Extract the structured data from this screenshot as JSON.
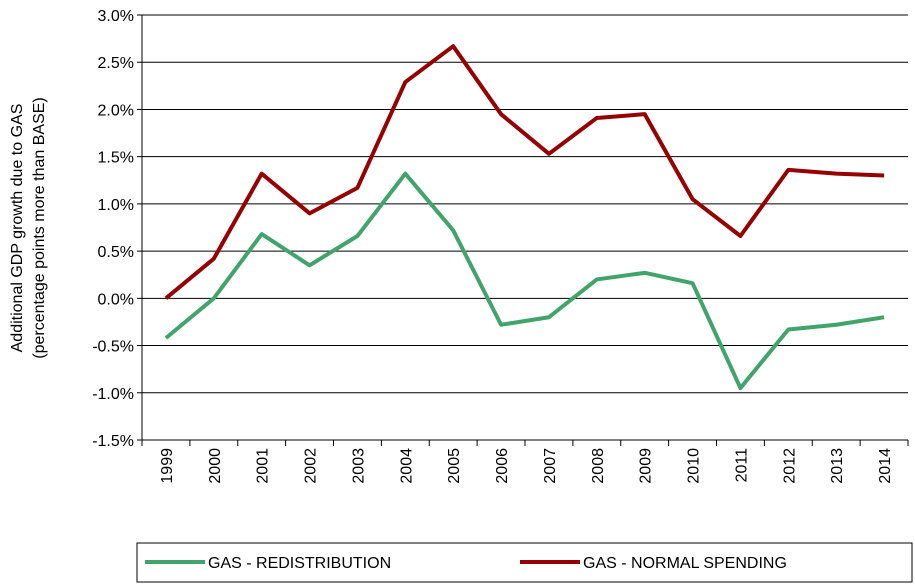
{
  "chart_data": {
    "type": "line",
    "y_label": [
      "Additional GDP growth due to GAS",
      "(percentage points more than BASE)"
    ],
    "categories": [
      "1999",
      "2000",
      "2001",
      "2002",
      "2003",
      "2004",
      "2005",
      "2006",
      "2007",
      "2008",
      "2009",
      "2010",
      "2011",
      "2012",
      "2013",
      "2014"
    ],
    "series": [
      {
        "name": "GAS - REDISTRIBUTION",
        "color": "#41a46a",
        "values": [
          -0.42,
          0.0,
          0.68,
          0.35,
          0.66,
          1.32,
          0.72,
          -0.28,
          -0.2,
          0.2,
          0.27,
          0.16,
          -0.95,
          -0.33,
          -0.28,
          -0.2
        ]
      },
      {
        "name": "GAS - NORMAL SPENDING",
        "color": "#960000",
        "values": [
          0.0,
          0.42,
          1.32,
          0.9,
          1.17,
          2.29,
          2.67,
          1.95,
          1.53,
          1.91,
          1.95,
          1.05,
          0.66,
          1.36,
          1.32,
          1.3
        ]
      }
    ],
    "ylim": [
      -1.5,
      3.0
    ],
    "yticks": [
      {
        "value": -1.5,
        "label": "-1.5%"
      },
      {
        "value": -1.0,
        "label": "-1.0%"
      },
      {
        "value": -0.5,
        "label": "-0.5%"
      },
      {
        "value": 0.0,
        "label": "0.0%"
      },
      {
        "value": 0.5,
        "label": "0.5%"
      },
      {
        "value": 1.0,
        "label": "1.0%"
      },
      {
        "value": 1.5,
        "label": "1.5%"
      },
      {
        "value": 2.0,
        "label": "2.0%"
      },
      {
        "value": 2.5,
        "label": "2.5%"
      },
      {
        "value": 3.0,
        "label": "3.0%"
      }
    ],
    "grid": true,
    "legend": "bottom"
  }
}
